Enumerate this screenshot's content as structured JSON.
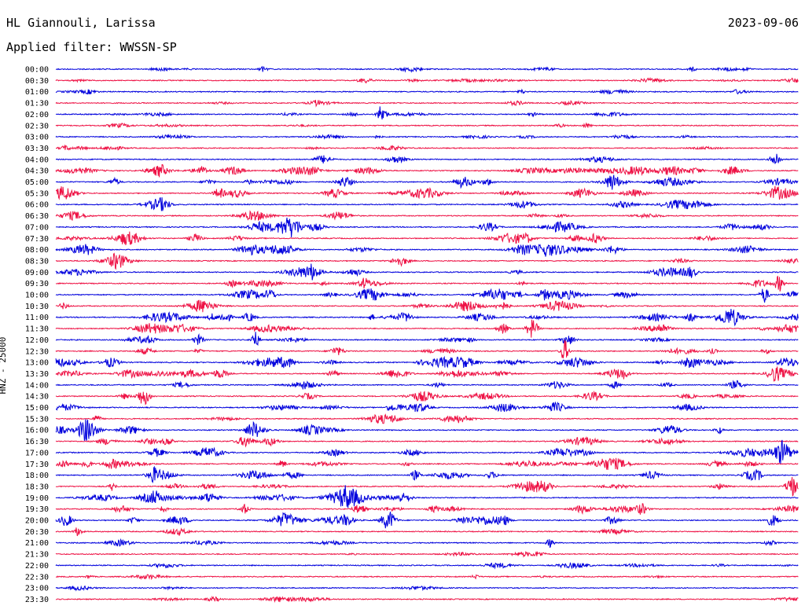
{
  "header": {
    "station": "HL Giannouli, Larissa",
    "date": "2023-09-06",
    "filter": "Applied filter: WWSSN-SP"
  },
  "chart_data": {
    "type": "line",
    "ylabel": "HNZ - 25000",
    "colors": [
      "#0000dd",
      "#ee1144"
    ],
    "rows": [
      "00:00",
      "00:30",
      "01:00",
      "01:30",
      "02:00",
      "02:30",
      "03:00",
      "03:30",
      "04:00",
      "04:30",
      "05:00",
      "05:30",
      "06:00",
      "06:30",
      "07:00",
      "07:30",
      "08:00",
      "08:30",
      "09:00",
      "09:30",
      "10:00",
      "10:30",
      "11:00",
      "11:30",
      "12:00",
      "12:30",
      "13:00",
      "13:30",
      "14:00",
      "14:30",
      "15:00",
      "15:30",
      "16:00",
      "16:30",
      "17:00",
      "17:30",
      "18:00",
      "18:30",
      "19:00",
      "19:30",
      "20:00",
      "20:30",
      "21:00",
      "21:30",
      "22:00",
      "22:30",
      "23:00",
      "23:30"
    ]
  }
}
